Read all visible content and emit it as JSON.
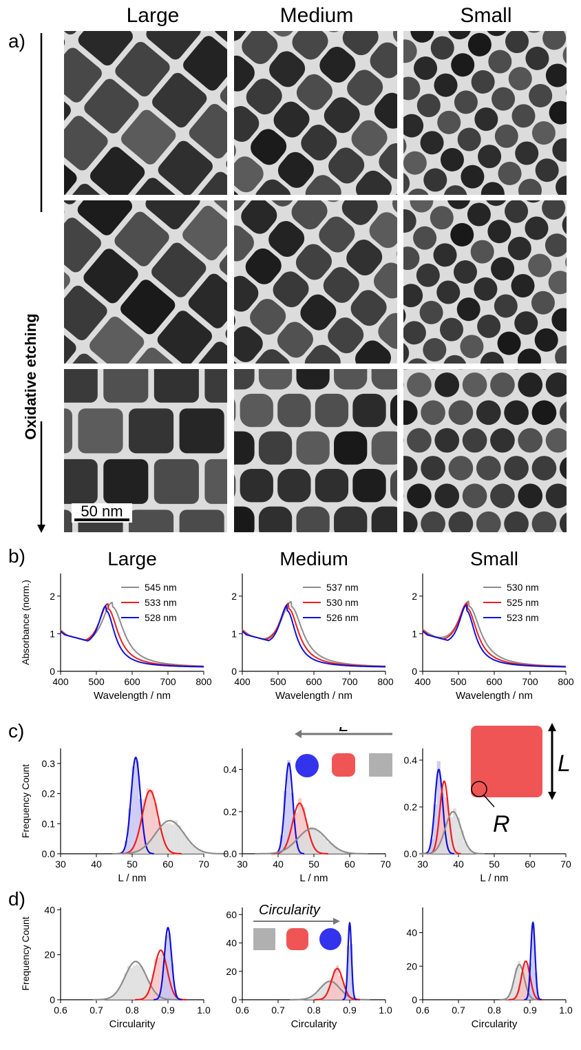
{
  "panel_labels": {
    "a": "a)",
    "b": "b)",
    "c": "c)",
    "d": "d)"
  },
  "column_titles": [
    "Large",
    "Medium",
    "Small"
  ],
  "etching_label": "Oxidative etching",
  "scale_bar": "50 nm",
  "inset_c": {
    "length_symbol": "L",
    "radius_symbol": "R"
  },
  "inset_d": {
    "label": "Circularity"
  },
  "colors": {
    "gray": "#8c8c8c",
    "red": "#ee1c1c",
    "blue": "#1010d8",
    "shape_red": "#f05555",
    "shape_blue": "#3333ee",
    "shape_gray": "#b0b0b0"
  },
  "chart_data": [
    {
      "type": "line",
      "panel": "b-large",
      "title": "Large",
      "xlabel": "Wavelength / nm",
      "ylabel": "Absorbance (norm.)",
      "xlim": [
        400,
        800
      ],
      "ylim": [
        0,
        2.6
      ],
      "xticks": [
        400,
        500,
        600,
        700,
        800
      ],
      "yticks": [
        0,
        1,
        2
      ],
      "series": [
        {
          "name": "545 nm",
          "peak": 545,
          "color": "gray"
        },
        {
          "name": "533 nm",
          "peak": 533,
          "color": "red"
        },
        {
          "name": "528 nm",
          "peak": 528,
          "color": "blue"
        }
      ]
    },
    {
      "type": "line",
      "panel": "b-medium",
      "title": "Medium",
      "xlabel": "Wavelength / nm",
      "ylabel": "",
      "xlim": [
        400,
        800
      ],
      "ylim": [
        0,
        2.6
      ],
      "xticks": [
        400,
        500,
        600,
        700,
        800
      ],
      "yticks": [
        0,
        1,
        2
      ],
      "series": [
        {
          "name": "537 nm",
          "peak": 537,
          "color": "gray"
        },
        {
          "name": "530 nm",
          "peak": 530,
          "color": "red"
        },
        {
          "name": "526 nm",
          "peak": 526,
          "color": "blue"
        }
      ]
    },
    {
      "type": "line",
      "panel": "b-small",
      "title": "Small",
      "xlabel": "Wavelength / nm",
      "ylabel": "",
      "xlim": [
        400,
        800
      ],
      "ylim": [
        0,
        2.6
      ],
      "xticks": [
        400,
        500,
        600,
        700,
        800
      ],
      "yticks": [
        0,
        1,
        2
      ],
      "series": [
        {
          "name": "530 nm",
          "peak": 530,
          "color": "gray"
        },
        {
          "name": "525 nm",
          "peak": 525,
          "color": "red"
        },
        {
          "name": "523 nm",
          "peak": 523,
          "color": "blue"
        }
      ]
    },
    {
      "type": "line",
      "panel": "c-large",
      "xlabel": "L / nm",
      "ylabel": "Frequency Count",
      "xlim": [
        30,
        70
      ],
      "ylim": [
        0,
        0.35
      ],
      "xticks": [
        30,
        40,
        50,
        60,
        70
      ],
      "yticks": [
        0.0,
        0.1,
        0.2,
        0.3
      ],
      "series": [
        {
          "color": "blue",
          "mean": 51,
          "sd": 1.3,
          "peak": 0.32
        },
        {
          "color": "red",
          "mean": 55,
          "sd": 2.2,
          "peak": 0.21
        },
        {
          "color": "gray",
          "mean": 60.5,
          "sd": 4,
          "peak": 0.11
        }
      ]
    },
    {
      "type": "line",
      "panel": "c-medium",
      "xlabel": "L / nm",
      "ylabel": "",
      "xlim": [
        30,
        70
      ],
      "ylim": [
        0,
        0.5
      ],
      "xticks": [
        30,
        40,
        50,
        60,
        70
      ],
      "yticks": [
        0.0,
        0.2,
        0.4
      ],
      "series": [
        {
          "color": "blue",
          "mean": 43,
          "sd": 1.1,
          "peak": 0.43
        },
        {
          "color": "red",
          "mean": 46,
          "sd": 2,
          "peak": 0.24
        },
        {
          "color": "gray",
          "mean": 49.5,
          "sd": 4,
          "peak": 0.12
        }
      ]
    },
    {
      "type": "line",
      "panel": "c-small",
      "xlabel": "L / nm",
      "ylabel": "",
      "xlim": [
        30,
        70
      ],
      "ylim": [
        0,
        0.45
      ],
      "xticks": [
        30,
        40,
        50,
        60,
        70
      ],
      "yticks": [
        0.0,
        0.2,
        0.4
      ],
      "series": [
        {
          "color": "blue",
          "mean": 34.5,
          "sd": 1.1,
          "peak": 0.36
        },
        {
          "color": "red",
          "mean": 36,
          "sd": 1.2,
          "peak": 0.31
        },
        {
          "color": "gray",
          "mean": 38.5,
          "sd": 2.2,
          "peak": 0.18
        }
      ]
    },
    {
      "type": "line",
      "panel": "d-large",
      "xlabel": "Circularity",
      "ylabel": "Frequency Count",
      "xlim": [
        0.6,
        1.0
      ],
      "ylim": [
        0,
        41
      ],
      "xticks": [
        0.6,
        0.7,
        0.8,
        0.9,
        1.0
      ],
      "yticks": [
        0,
        20,
        40
      ],
      "series": [
        {
          "color": "gray",
          "mean": 0.81,
          "sd": 0.03,
          "peak": 17
        },
        {
          "color": "red",
          "mean": 0.88,
          "sd": 0.018,
          "peak": 22
        },
        {
          "color": "blue",
          "mean": 0.9,
          "sd": 0.01,
          "peak": 32
        }
      ]
    },
    {
      "type": "line",
      "panel": "d-medium",
      "xlabel": "Circularity",
      "ylabel": "",
      "xlim": [
        0.6,
        1.0
      ],
      "ylim": [
        0,
        65
      ],
      "xticks": [
        0.6,
        0.7,
        0.8,
        0.9,
        1.0
      ],
      "yticks": [
        0,
        20,
        40,
        60
      ],
      "series": [
        {
          "color": "gray",
          "mean": 0.845,
          "sd": 0.028,
          "peak": 13
        },
        {
          "color": "red",
          "mean": 0.865,
          "sd": 0.016,
          "peak": 22
        },
        {
          "color": "blue",
          "mean": 0.9,
          "sd": 0.005,
          "peak": 54
        }
      ]
    },
    {
      "type": "line",
      "panel": "d-small",
      "xlabel": "Circularity",
      "ylabel": "",
      "xlim": [
        0.6,
        1.0
      ],
      "ylim": [
        0,
        55
      ],
      "xticks": [
        0.6,
        0.7,
        0.8,
        0.9,
        1.0
      ],
      "yticks": [
        0,
        20,
        40
      ],
      "series": [
        {
          "color": "gray",
          "mean": 0.87,
          "sd": 0.014,
          "peak": 21
        },
        {
          "color": "red",
          "mean": 0.888,
          "sd": 0.012,
          "peak": 23
        },
        {
          "color": "blue",
          "mean": 0.908,
          "sd": 0.006,
          "peak": 46
        }
      ]
    }
  ]
}
